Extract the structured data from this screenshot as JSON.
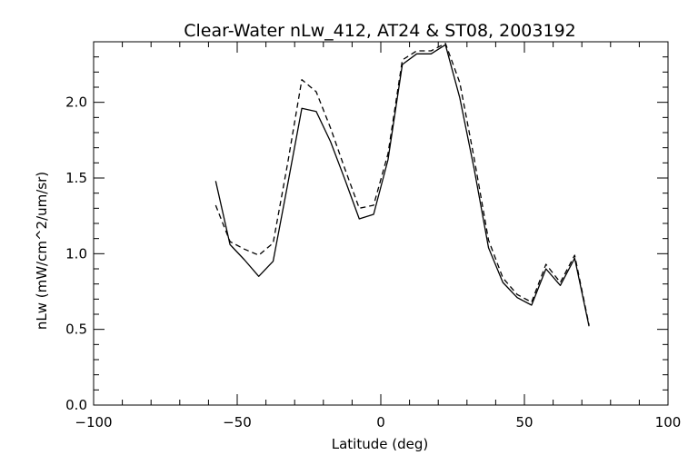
{
  "chart_data": {
    "type": "line",
    "title": "Clear-Water nLw_412, AT24 & ST08, 2003192",
    "xlabel": "Latitude (deg)",
    "ylabel": "nLw (mW/cm^2/um/sr)",
    "xlim": [
      -100,
      100
    ],
    "ylim": [
      0.0,
      2.4
    ],
    "x_ticks": [
      -100,
      -50,
      0,
      50,
      100
    ],
    "x_tick_labels": [
      "−100",
      "−50",
      "0",
      "50",
      "100"
    ],
    "y_ticks": [
      0.0,
      0.5,
      1.0,
      1.5,
      2.0
    ],
    "y_tick_labels": [
      "0.0",
      "0.5",
      "1.0",
      "1.5",
      "2.0"
    ],
    "x_minor_step": 10,
    "y_minor_step": 0.1,
    "grid": false,
    "legend": "none",
    "series": [
      {
        "style": "solid",
        "color": "#000000",
        "x": [
          -57.5,
          -52.5,
          -47.5,
          -42.5,
          -37.5,
          -32.5,
          -27.5,
          -22.5,
          -17.5,
          -12.5,
          -7.5,
          -2.5,
          2.5,
          7.5,
          12.5,
          17.5,
          22.5,
          27.5,
          32.5,
          37.5,
          42.5,
          47.5,
          52.5,
          57.5,
          62.5,
          67.5,
          72.5
        ],
        "y": [
          1.48,
          1.06,
          0.96,
          0.85,
          0.95,
          1.45,
          1.96,
          1.94,
          1.74,
          1.49,
          1.23,
          1.26,
          1.62,
          2.25,
          2.32,
          2.32,
          2.38,
          2.03,
          1.56,
          1.04,
          0.81,
          0.71,
          0.66,
          0.9,
          0.79,
          0.97,
          0.52
        ]
      },
      {
        "style": "dashed",
        "color": "#000000",
        "x": [
          -57.5,
          -52.5,
          -47.5,
          -42.5,
          -37.5,
          -32.5,
          -27.5,
          -22.5,
          -17.5,
          -12.5,
          -7.5,
          -2.5,
          2.5,
          7.5,
          12.5,
          17.5,
          22.5,
          27.5,
          32.5,
          37.5,
          42.5,
          47.5,
          52.5,
          57.5,
          62.5,
          67.5,
          72.5
        ],
        "y": [
          1.32,
          1.08,
          1.03,
          0.99,
          1.07,
          1.59,
          2.15,
          2.07,
          1.83,
          1.56,
          1.3,
          1.32,
          1.66,
          2.28,
          2.34,
          2.34,
          2.39,
          2.13,
          1.63,
          1.09,
          0.84,
          0.73,
          0.68,
          0.93,
          0.81,
          0.99,
          0.53
        ]
      }
    ]
  }
}
